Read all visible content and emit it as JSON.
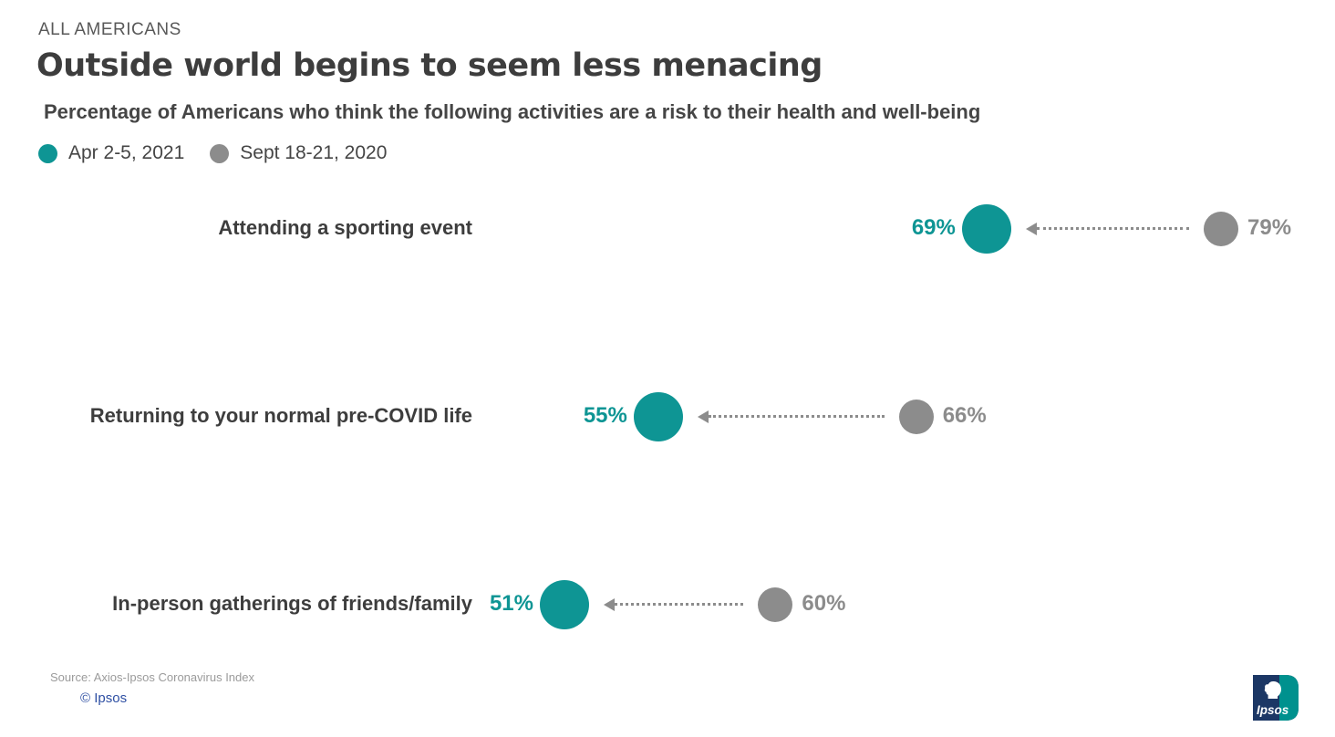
{
  "header": {
    "eyebrow": "ALL AMERICANS",
    "title": "Outside world begins to seem less menacing",
    "subtitle": "Percentage of Americans who think the following activities are a risk to their health and well-being"
  },
  "legend": [
    {
      "label": "Apr 2-5, 2021",
      "color": "#0e9594"
    },
    {
      "label": "Sept 18-21, 2020",
      "color": "#8c8c8c"
    }
  ],
  "chart_data": {
    "type": "scatter",
    "variant": "dumbbell",
    "orientation": "horizontal",
    "title": "Outside world begins to seem less menacing",
    "subtitle": "Percentage of Americans who think the following activities are a risk to their health and well-being",
    "categories": [
      "Attending a sporting event",
      "Returning to your normal pre-COVID life",
      "In-person gatherings of friends/family"
    ],
    "series": [
      {
        "name": "Apr 2-5, 2021",
        "color": "#0e9594",
        "values": [
          69,
          55,
          51
        ]
      },
      {
        "name": "Sept 18-21, 2020",
        "color": "#8c8c8c",
        "values": [
          79,
          66,
          60
        ]
      }
    ],
    "value_suffix": "%",
    "xlim": [
      45,
      85
    ],
    "grid": false,
    "legend_position": "top-left",
    "annotation": "dotted arrows point from Sept 18-21, 2020 values toward Apr 2-5, 2021 values"
  },
  "footer": {
    "source": "Source: Axios-Ipsos Coronavirus Index",
    "copyright": "© Ipsos",
    "logo_text": "Ipsos"
  },
  "colors": {
    "teal": "#0e9594",
    "gray": "#8c8c8c",
    "text_dark": "#3d3d3d",
    "logo_navy": "#1c3765",
    "logo_teal": "#00918e",
    "copyright_blue": "#2e4fa3"
  }
}
